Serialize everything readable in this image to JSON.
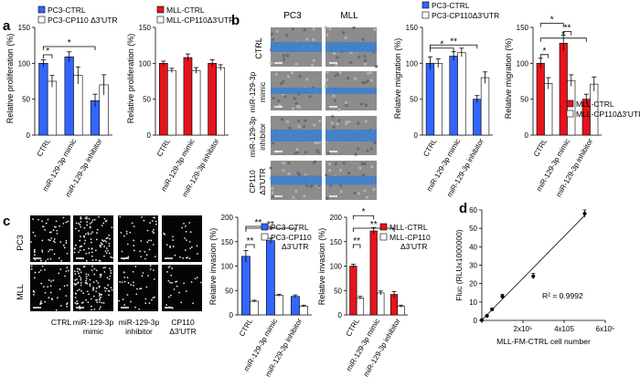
{
  "colors": {
    "blue": "#3366ff",
    "red": "#e5141b",
    "white": "#ffffff",
    "edge": "#000000",
    "micrograph_bg": "#8c8c8c",
    "scratch": "#3a7fd0",
    "fluor_bg": "#050505",
    "fluor_dot": "#e6e6e6"
  },
  "panels": {
    "a": {
      "letter": "a"
    },
    "b": {
      "letter": "b",
      "image_columns": [
        "PC3",
        "MLL"
      ],
      "image_rows": [
        "CTRL",
        "miR-129-3p mimic",
        "miR-129-3p inhibitor",
        "CP110 Δ3'UTR"
      ]
    },
    "c": {
      "letter": "c",
      "image_rows": [
        "PC3",
        "MLL"
      ],
      "image_columns": [
        "CTRL",
        "miR-129-3p mimic",
        "miR-129-3p inhibitor",
        "CP110 Δ3'UTR"
      ]
    },
    "d": {
      "letter": "d"
    }
  },
  "chart_data": [
    {
      "id": "a_pc3",
      "type": "bar",
      "ylabel": "Relative proliferation (%)",
      "ylim": [
        0,
        150
      ],
      "yticks": [
        0,
        50,
        100,
        150
      ],
      "categories": [
        "CTRL",
        "miR-129-3p mimic",
        "miR-129-3p inhibitor"
      ],
      "series": [
        {
          "name": "PC3-CTRL",
          "color": "blue",
          "values": [
            100,
            109,
            48
          ],
          "errors": [
            5,
            7,
            9
          ]
        },
        {
          "name": "PC3-CP110 Δ3'UTR",
          "color": "white",
          "values": [
            75,
            83,
            70
          ],
          "errors": [
            8,
            12,
            14
          ]
        }
      ],
      "significance": [
        {
          "from": [
            0,
            0
          ],
          "to": [
            0,
            1
          ],
          "label": "*",
          "level": 1
        },
        {
          "from": [
            0,
            0
          ],
          "to": [
            2,
            0
          ],
          "label": "*",
          "level": 2
        }
      ]
    },
    {
      "id": "a_mll",
      "type": "bar",
      "ylabel": "Relative proliferation (%)",
      "ylim": [
        0,
        150
      ],
      "yticks": [
        0,
        50,
        100,
        150
      ],
      "categories": [
        "CTRL",
        "miR-129-3p mimic",
        "miR-129-3p inhibitor"
      ],
      "series": [
        {
          "name": "MLL-CTRL",
          "color": "red",
          "values": [
            100,
            108,
            100
          ],
          "errors": [
            3,
            5,
            5
          ]
        },
        {
          "name": "MLL-CP110Δ3'UTR",
          "color": "white",
          "values": [
            90,
            90,
            94
          ],
          "errors": [
            3,
            4,
            4
          ]
        }
      ],
      "significance": []
    },
    {
      "id": "b_pc3",
      "type": "bar",
      "ylabel": "Relative migration (%)",
      "ylim": [
        0,
        150
      ],
      "yticks": [
        0,
        50,
        100,
        150
      ],
      "categories": [
        "CTRL",
        "miR-129-3p mimic",
        "miR-129-3p inhibitor"
      ],
      "series": [
        {
          "name": "PC3-CTRL",
          "color": "blue",
          "values": [
            100,
            110,
            50
          ],
          "errors": [
            9,
            6,
            5
          ]
        },
        {
          "name": "PC3-CP110Δ3'UTR",
          "color": "white",
          "values": [
            100,
            115,
            80
          ],
          "errors": [
            6,
            6,
            8
          ]
        }
      ],
      "significance": [
        {
          "from": [
            0,
            0
          ],
          "to": [
            1,
            0
          ],
          "label": "*",
          "level": 1
        },
        {
          "from": [
            0,
            0
          ],
          "to": [
            2,
            0
          ],
          "label": "**",
          "level": 2
        }
      ]
    },
    {
      "id": "b_mll",
      "type": "bar",
      "ylabel": "Relative migration (%)",
      "ylim": [
        0,
        150
      ],
      "yticks": [
        0,
        50,
        100,
        150
      ],
      "categories": [
        "CTRL",
        "miR-129-3p mimic",
        "miR-129-3p inhibitor"
      ],
      "series": [
        {
          "name": "MLL-CTRL",
          "color": "red",
          "values": [
            100,
            128,
            50
          ],
          "errors": [
            7,
            11,
            7
          ]
        },
        {
          "name": "MLL-CP110Δ3'UTR",
          "color": "white",
          "values": [
            72,
            76,
            71
          ],
          "errors": [
            8,
            8,
            10
          ]
        }
      ],
      "significance": [
        {
          "from": [
            0,
            0
          ],
          "to": [
            0,
            1
          ],
          "label": "*",
          "level": 1
        },
        {
          "from": [
            1,
            0
          ],
          "to": [
            1,
            1
          ],
          "label": "**",
          "level": 1
        },
        {
          "from": [
            0,
            0
          ],
          "to": [
            1,
            0
          ],
          "label": "*",
          "level": 2
        },
        {
          "from": [
            0,
            0
          ],
          "to": [
            2,
            0
          ],
          "label": "*",
          "level": 3
        }
      ]
    },
    {
      "id": "c_pc3",
      "type": "bar",
      "ylabel": "Relative invasion (%)",
      "ylim": [
        0,
        200
      ],
      "yticks": [
        0,
        50,
        100,
        150,
        200
      ],
      "categories": [
        "CTRL",
        "miR-129-3p mimic",
        "miR-129-3p inhibitor"
      ],
      "series": [
        {
          "name": "PC3-CTRL",
          "color": "blue",
          "values": [
            120,
            152,
            38
          ],
          "errors": [
            12,
            5,
            3
          ]
        },
        {
          "name": "PC3-CP110 Δ3'UTR",
          "color": "white",
          "values": [
            28,
            40,
            18
          ],
          "errors": [
            2,
            2,
            2
          ]
        }
      ],
      "significance": [
        {
          "from": [
            0,
            0
          ],
          "to": [
            0,
            1
          ],
          "label": "**",
          "level": 1
        },
        {
          "from": [
            0,
            0
          ],
          "to": [
            1,
            0
          ],
          "label": "**",
          "level": 2
        },
        {
          "from": [
            0,
            0
          ],
          "to": [
            2,
            0
          ],
          "label": "**",
          "level": 3
        }
      ]
    },
    {
      "id": "c_mll",
      "type": "bar",
      "ylabel": "Relative invasion (%)",
      "ylim": [
        0,
        200
      ],
      "yticks": [
        0,
        50,
        100,
        150,
        200
      ],
      "categories": [
        "CTRL",
        "miR-129-3p mimic",
        "miR-129-3p inhibitor"
      ],
      "series": [
        {
          "name": "MLL-CTRL",
          "color": "red",
          "values": [
            100,
            172,
            42
          ],
          "errors": [
            4,
            7,
            6
          ]
        },
        {
          "name": "MLL-CP110 Δ3'UTR",
          "color": "white",
          "values": [
            35,
            45,
            18
          ],
          "errors": [
            3,
            4,
            2
          ]
        }
      ],
      "significance": [
        {
          "from": [
            0,
            0
          ],
          "to": [
            0,
            1
          ],
          "label": "**",
          "level": 1
        },
        {
          "from": [
            0,
            0
          ],
          "to": [
            1,
            0
          ],
          "label": "*",
          "level": 2
        },
        {
          "from": [
            0,
            0
          ],
          "to": [
            2,
            0
          ],
          "label": "**",
          "level": 3
        }
      ]
    },
    {
      "id": "d_fluc",
      "type": "scatter",
      "xlabel": "MLL-FM-CTRL cell number",
      "ylabel": "Fluc (RLUx1000000)",
      "xlim": [
        0,
        600000
      ],
      "ylim": [
        0,
        60
      ],
      "xticks": [
        {
          "v": 0,
          "t": ""
        },
        {
          "v": 200000,
          "t": "2x10⁵"
        },
        {
          "v": 400000,
          "t": "4x105"
        },
        {
          "v": 600000,
          "t": "6x10⁵"
        }
      ],
      "yticks": [
        0,
        10,
        20,
        30,
        40,
        50,
        60
      ],
      "points": [
        {
          "x": 0,
          "y": 0.2,
          "err": 0
        },
        {
          "x": 25000,
          "y": 2.5,
          "err": 0.4
        },
        {
          "x": 50000,
          "y": 6,
          "err": 0.6
        },
        {
          "x": 100000,
          "y": 13,
          "err": 1.2
        },
        {
          "x": 250000,
          "y": 24,
          "err": 1.5
        },
        {
          "x": 500000,
          "y": 58,
          "err": 2
        }
      ],
      "fit": [
        [
          0,
          0.2
        ],
        [
          500000,
          57
        ]
      ],
      "annotation": "R² = 0.9992"
    }
  ]
}
